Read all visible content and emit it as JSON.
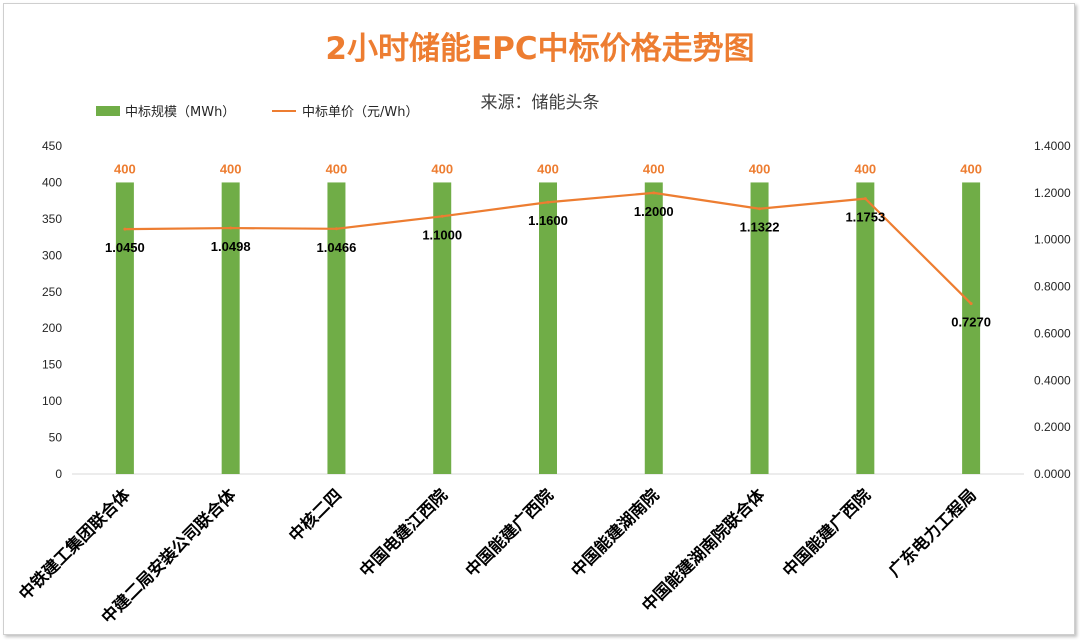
{
  "chart_data": {
    "type": "bar",
    "title": "2小时储能EPC中标价格走势图",
    "subtitle": "来源：储能头条",
    "categories": [
      "中铁建工集团联合体",
      "中建二局安装公司联合体",
      "中核二四",
      "中国电建江西院",
      "中国能建广西院",
      "中国能建湖南院",
      "中国能建湖南院联合体",
      "中国能建广西院",
      "广东电力工程局"
    ],
    "series": [
      {
        "name": "中标规模（MWh）",
        "type": "bar",
        "axis": "left",
        "color": "#70AD47",
        "values": [
          400,
          400,
          400,
          400,
          400,
          400,
          400,
          400,
          400
        ],
        "labels": [
          "400",
          "400",
          "400",
          "400",
          "400",
          "400",
          "400",
          "400",
          "400"
        ]
      },
      {
        "name": "中标单价（元/Wh）",
        "type": "line",
        "axis": "right",
        "color": "#ED7D31",
        "values": [
          1.045,
          1.0498,
          1.0466,
          1.1,
          1.16,
          1.2,
          1.1322,
          1.1753,
          0.727
        ],
        "labels": [
          "1.0450",
          "1.0498",
          "1.0466",
          "1.1000",
          "1.1600",
          "1.2000",
          "1.1322",
          "1.1753",
          "0.7270"
        ]
      }
    ],
    "y_left": {
      "min": 0,
      "max": 450,
      "ticks": [
        "0",
        "50",
        "100",
        "150",
        "200",
        "250",
        "300",
        "350",
        "400",
        "450"
      ]
    },
    "y_right": {
      "min": 0,
      "max": 1.4,
      "ticks": [
        "0.0000",
        "0.2000",
        "0.4000",
        "0.6000",
        "0.8000",
        "1.0000",
        "1.2000",
        "1.4000"
      ]
    },
    "grid": false,
    "legend": "top-left"
  }
}
